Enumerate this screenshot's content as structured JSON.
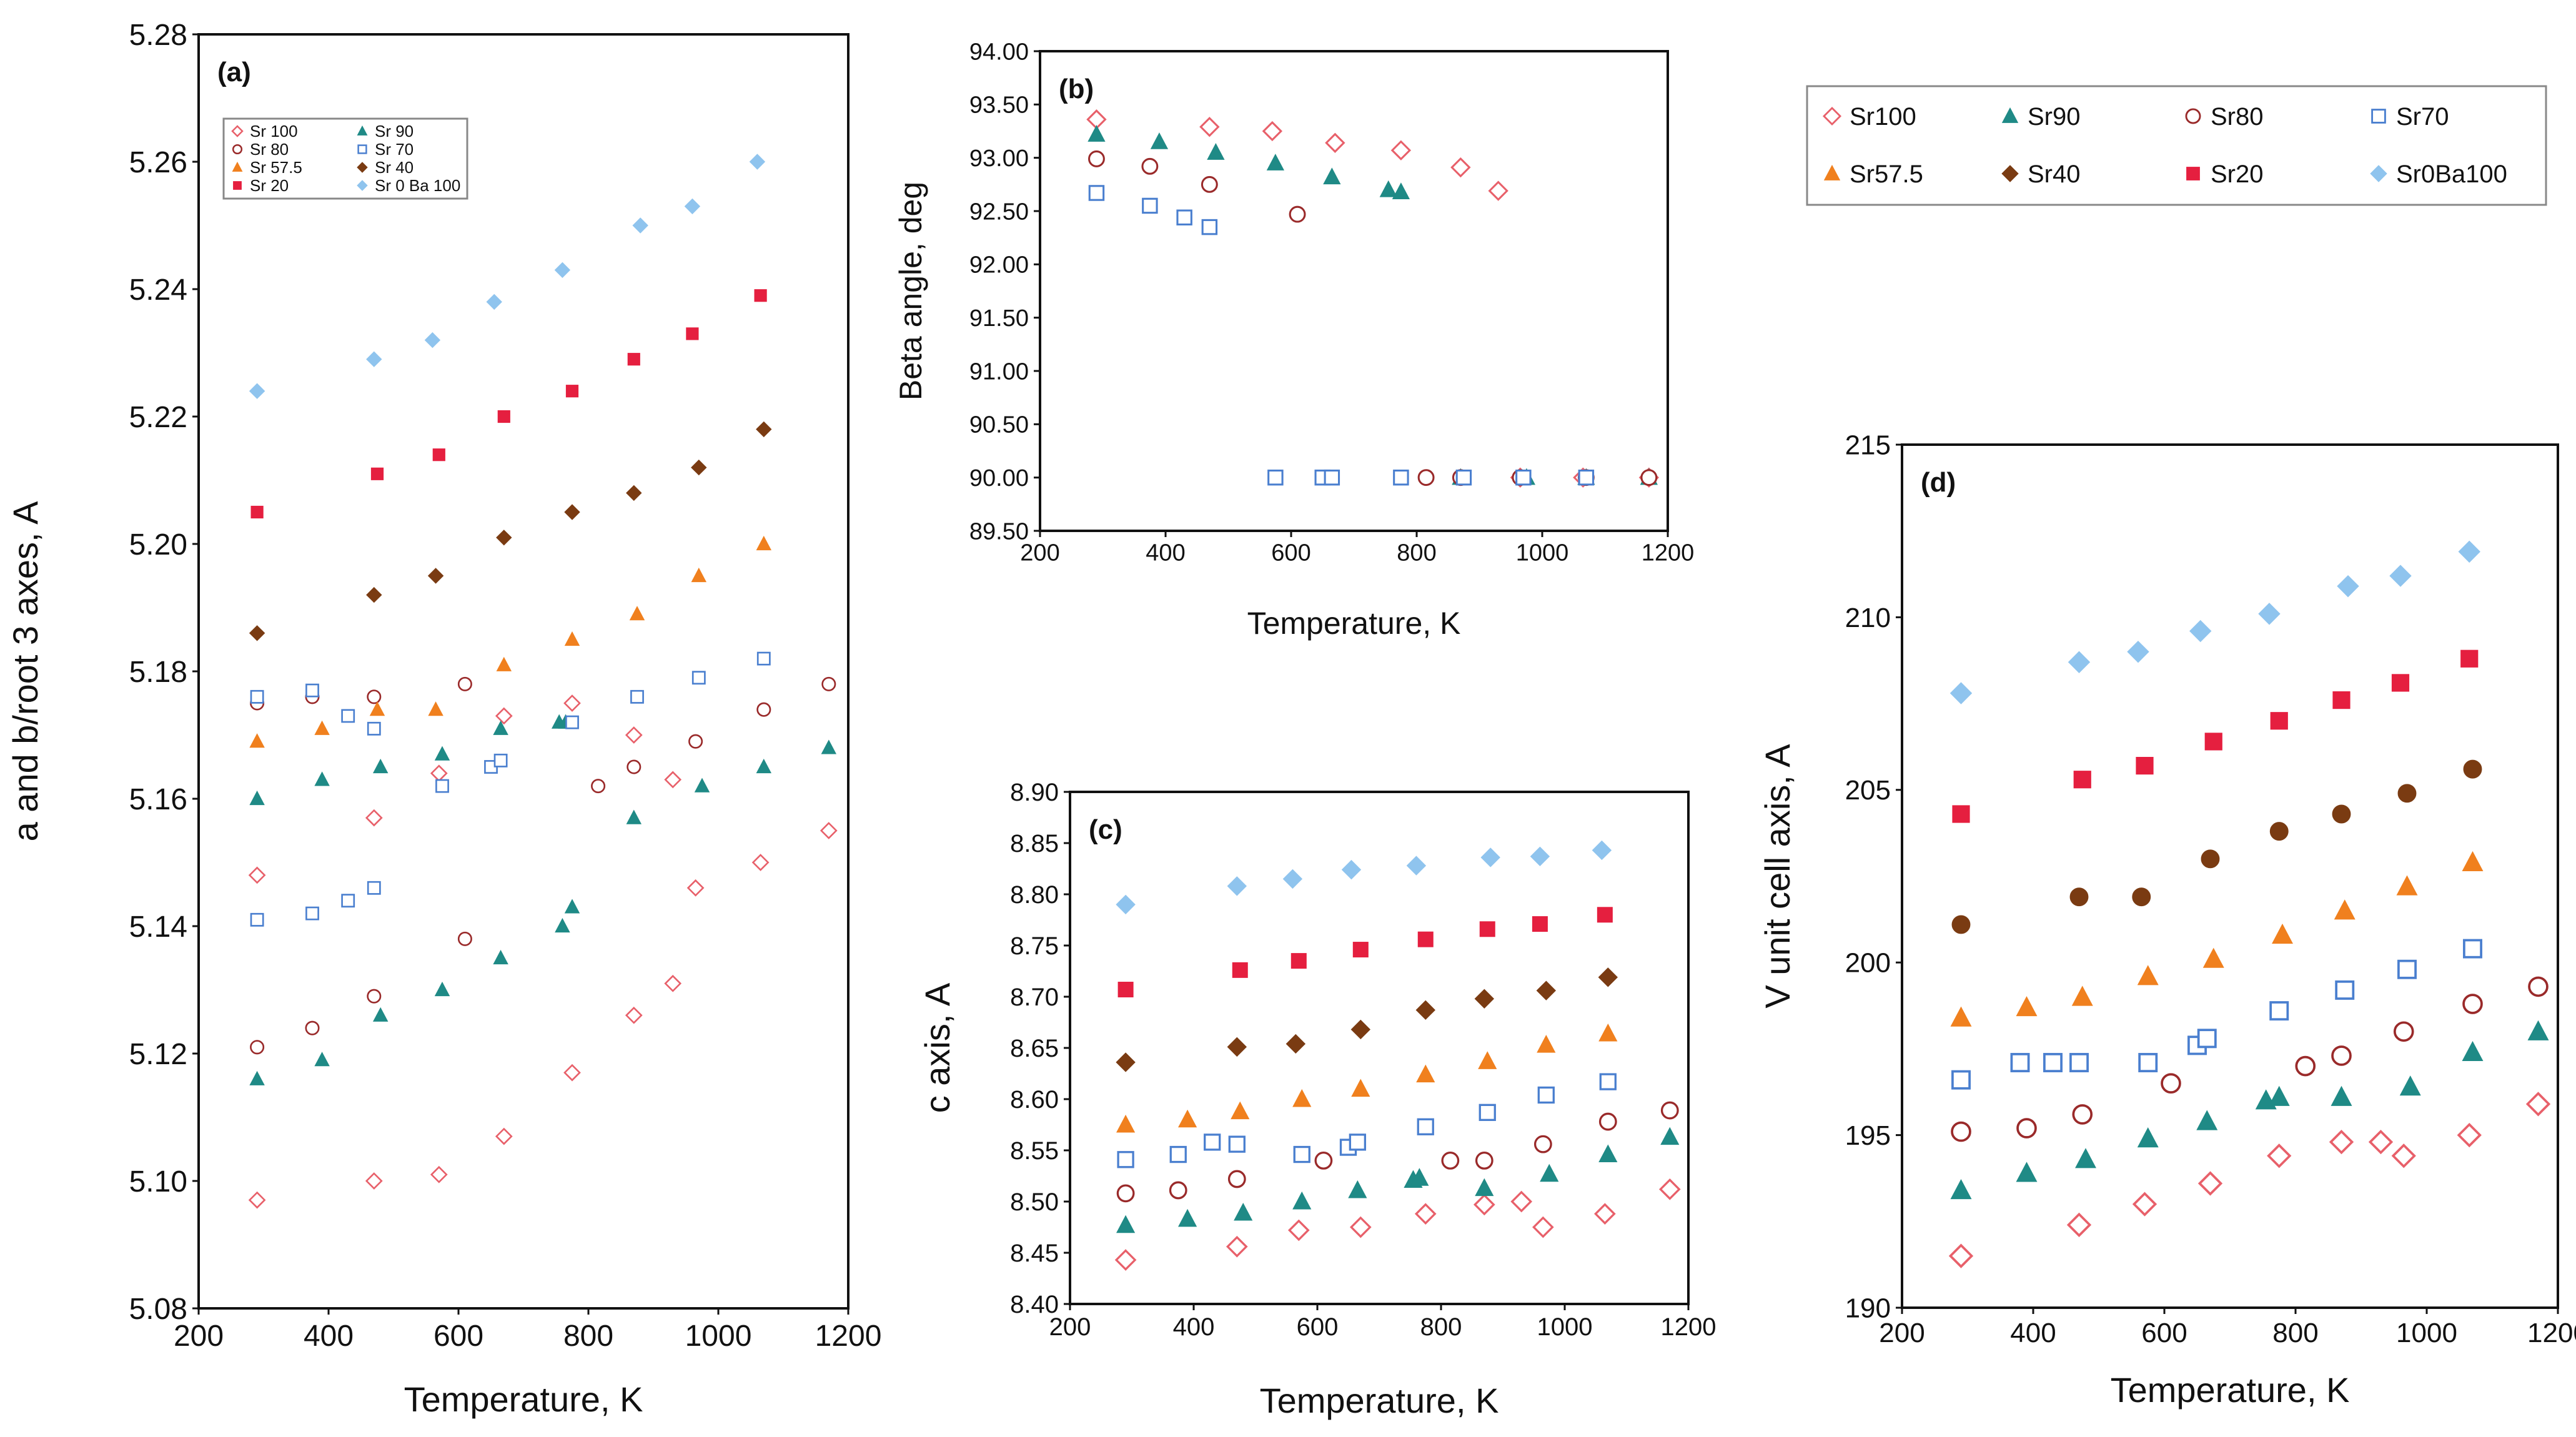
{
  "colors": {
    "Sr100": "#e8606a",
    "Sr90": "#1f8a86",
    "Sr80": "#9a2a2a",
    "Sr70": "#4a7fcf",
    "Sr57.5": "#f0801e",
    "Sr40": "#7a3b12",
    "Sr20": "#e51f3f",
    "Sr0Ba100": "#8fc4ee"
  },
  "chart_data": [
    {
      "id": "a",
      "type": "scatter",
      "panel_label": "(a)",
      "xlabel": "Temperature, K",
      "ylabel": "a and b/root 3  axes,  A",
      "xlim": [
        200,
        1200
      ],
      "ylim": [
        5.08,
        5.28
      ],
      "xticks": [
        "200",
        "400",
        "600",
        "800",
        "1000",
        "1200"
      ],
      "yticks": [
        "5.08",
        "5.10",
        "5.12",
        "5.14",
        "5.16",
        "5.18",
        "5.20",
        "5.22",
        "5.24",
        "5.26",
        "5.28"
      ],
      "legend": [
        {
          "label": "Sr 100",
          "key": "Sr100",
          "marker": "diamond-open"
        },
        {
          "label": "Sr 90",
          "key": "Sr90",
          "marker": "triangle"
        },
        {
          "label": "Sr 80",
          "key": "Sr80",
          "marker": "circle-open"
        },
        {
          "label": "Sr 70",
          "key": "Sr70",
          "marker": "square-open"
        },
        {
          "label": "Sr 57.5",
          "key": "Sr57.5",
          "marker": "triangle"
        },
        {
          "label": "Sr 40",
          "key": "Sr40",
          "marker": "diamond"
        },
        {
          "label": "Sr 20",
          "key": "Sr20",
          "marker": "square"
        },
        {
          "label": "Sr 0 Ba 100",
          "key": "Sr0Ba100",
          "marker": "diamond"
        }
      ],
      "series": [
        {
          "name": "Sr 100 a",
          "key": "Sr100",
          "marker": "diamond-open",
          "x": [
            290,
            470,
            570,
            670,
            775,
            870,
            930,
            965,
            1065,
            1170
          ],
          "y": [
            5.097,
            5.1,
            5.101,
            5.107,
            5.117,
            5.126,
            5.131,
            5.146,
            5.15,
            5.155
          ]
        },
        {
          "name": "Sr 100 b",
          "key": "Sr100",
          "marker": "diamond-open",
          "x": [
            290,
            470,
            570,
            670,
            775,
            870,
            930
          ],
          "y": [
            5.148,
            5.157,
            5.164,
            5.173,
            5.175,
            5.17,
            5.163
          ]
        },
        {
          "name": "Sr 90 a",
          "key": "Sr90",
          "marker": "triangle",
          "x": [
            290,
            390,
            480,
            575,
            665,
            760,
            775,
            870,
            975,
            1070,
            1170
          ],
          "y": [
            5.116,
            5.119,
            5.126,
            5.13,
            5.135,
            5.14,
            5.143,
            5.157,
            5.162,
            5.165,
            5.168
          ]
        },
        {
          "name": "Sr 90 b",
          "key": "Sr90",
          "marker": "triangle",
          "x": [
            290,
            390,
            480,
            575,
            665,
            755,
            765
          ],
          "y": [
            5.16,
            5.163,
            5.165,
            5.167,
            5.171,
            5.172,
            5.172
          ]
        },
        {
          "name": "Sr 80 a",
          "key": "Sr80",
          "marker": "circle-open",
          "x": [
            290,
            375,
            470,
            610,
            815,
            870,
            965,
            1070,
            1170
          ],
          "y": [
            5.121,
            5.124,
            5.129,
            5.138,
            5.162,
            5.165,
            5.169,
            5.174,
            5.178
          ]
        },
        {
          "name": "Sr 80 b",
          "key": "Sr80",
          "marker": "circle-open",
          "x": [
            290,
            375,
            470,
            610
          ],
          "y": [
            5.175,
            5.176,
            5.176,
            5.178
          ]
        },
        {
          "name": "Sr 70 a",
          "key": "Sr70",
          "marker": "square-open",
          "x": [
            290,
            375,
            430,
            470,
            575,
            650,
            665,
            775,
            875,
            970,
            1070
          ],
          "y": [
            5.141,
            5.142,
            5.144,
            5.146,
            5.162,
            5.165,
            5.166,
            5.172,
            5.176,
            5.179,
            5.182
          ]
        },
        {
          "name": "Sr 70 b",
          "key": "Sr70",
          "marker": "square-open",
          "x": [
            290,
            375,
            430,
            470
          ],
          "y": [
            5.176,
            5.177,
            5.173,
            5.171
          ]
        },
        {
          "name": "Sr 57.5",
          "key": "Sr57.5",
          "marker": "triangle",
          "x": [
            290,
            390,
            475,
            565,
            670,
            775,
            875,
            970,
            1070
          ],
          "y": [
            5.169,
            5.171,
            5.174,
            5.174,
            5.181,
            5.185,
            5.189,
            5.195,
            5.2
          ]
        },
        {
          "name": "Sr 40",
          "key": "Sr40",
          "marker": "diamond",
          "x": [
            290,
            470,
            565,
            670,
            775,
            870,
            970,
            1070
          ],
          "y": [
            5.186,
            5.192,
            5.195,
            5.201,
            5.205,
            5.208,
            5.212,
            5.218
          ]
        },
        {
          "name": "Sr 20",
          "key": "Sr20",
          "marker": "square",
          "x": [
            290,
            475,
            570,
            670,
            775,
            870,
            960,
            1065
          ],
          "y": [
            5.205,
            5.211,
            5.214,
            5.22,
            5.224,
            5.229,
            5.233,
            5.239
          ]
        },
        {
          "name": "Sr 0 Ba 100",
          "key": "Sr0Ba100",
          "marker": "diamond",
          "x": [
            290,
            470,
            560,
            655,
            760,
            880,
            960,
            1060
          ],
          "y": [
            5.224,
            5.229,
            5.232,
            5.238,
            5.243,
            5.25,
            5.253,
            5.26
          ]
        }
      ]
    },
    {
      "id": "b",
      "type": "scatter",
      "panel_label": "(b)",
      "xlabel": "Temperature,  K",
      "ylabel": "Beta angle,  deg",
      "xlim": [
        200,
        1200
      ],
      "ylim": [
        89.5,
        94.0
      ],
      "xticks": [
        "200",
        "400",
        "600",
        "800",
        "1000",
        "1200"
      ],
      "yticks": [
        "89.50",
        "90.00",
        "90.50",
        "91.00",
        "91.50",
        "92.00",
        "92.50",
        "93.00",
        "93.50",
        "94.00"
      ],
      "series": [
        {
          "name": "Sr100",
          "key": "Sr100",
          "marker": "diamond-open",
          "x": [
            290,
            470,
            570,
            670,
            775,
            870,
            930,
            965,
            1065,
            1170
          ],
          "y": [
            93.36,
            93.29,
            93.25,
            93.14,
            93.07,
            92.91,
            92.69,
            90.0,
            90.0,
            90.0
          ]
        },
        {
          "name": "Sr90",
          "key": "Sr90",
          "marker": "triangle",
          "x": [
            290,
            390,
            480,
            575,
            665,
            755,
            775,
            870,
            975,
            1070,
            1170
          ],
          "y": [
            93.22,
            93.15,
            93.05,
            92.95,
            92.82,
            92.7,
            92.68,
            90.0,
            90.0,
            90.0,
            90.0
          ]
        },
        {
          "name": "Sr80",
          "key": "Sr80",
          "marker": "circle-open",
          "x": [
            290,
            375,
            470,
            610,
            815,
            870,
            965,
            1070,
            1170
          ],
          "y": [
            92.99,
            92.92,
            92.75,
            92.47,
            90.0,
            90.0,
            90.0,
            90.0,
            90.0
          ]
        },
        {
          "name": "Sr70",
          "key": "Sr70",
          "marker": "square-open",
          "x": [
            290,
            375,
            430,
            470,
            575,
            650,
            665,
            775,
            875,
            970,
            1070
          ],
          "y": [
            92.67,
            92.55,
            92.44,
            92.35,
            90.0,
            90.0,
            90.0,
            90.0,
            90.0,
            90.0,
            90.0
          ]
        }
      ]
    },
    {
      "id": "c",
      "type": "scatter",
      "panel_label": "(c)",
      "xlabel": "Temperature, K",
      "ylabel": "c axis,   A",
      "xlim": [
        200,
        1200
      ],
      "ylim": [
        8.4,
        8.9
      ],
      "xticks": [
        "200",
        "400",
        "600",
        "800",
        "1000",
        "1200"
      ],
      "yticks": [
        "8.40",
        "8.45",
        "8.50",
        "8.55",
        "8.60",
        "8.65",
        "8.70",
        "8.75",
        "8.80",
        "8.85",
        "8.90"
      ],
      "series": [
        {
          "name": "Sr100",
          "key": "Sr100",
          "marker": "diamond-open",
          "x": [
            290,
            470,
            570,
            670,
            775,
            870,
            930,
            965,
            1065,
            1170
          ],
          "y": [
            8.443,
            8.456,
            8.472,
            8.475,
            8.488,
            8.497,
            8.5,
            8.475,
            8.488,
            8.512
          ]
        },
        {
          "name": "Sr90",
          "key": "Sr90",
          "marker": "triangle",
          "x": [
            290,
            390,
            480,
            575,
            665,
            755,
            765,
            870,
            975,
            1070,
            1170
          ],
          "y": [
            8.477,
            8.483,
            8.489,
            8.5,
            8.511,
            8.521,
            8.523,
            8.513,
            8.527,
            8.546,
            8.563
          ]
        },
        {
          "name": "Sr80",
          "key": "Sr80",
          "marker": "circle-open",
          "x": [
            290,
            375,
            470,
            610,
            815,
            870,
            965,
            1070,
            1170
          ],
          "y": [
            8.508,
            8.511,
            8.522,
            8.54,
            8.54,
            8.54,
            8.556,
            8.578,
            8.589
          ]
        },
        {
          "name": "Sr70",
          "key": "Sr70",
          "marker": "square-open",
          "x": [
            290,
            375,
            430,
            470,
            575,
            650,
            665,
            775,
            875,
            970,
            1070
          ],
          "y": [
            8.541,
            8.546,
            8.558,
            8.556,
            8.546,
            8.553,
            8.558,
            8.573,
            8.587,
            8.604,
            8.617
          ]
        },
        {
          "name": "Sr57.5",
          "key": "Sr57.5",
          "marker": "triangle",
          "x": [
            290,
            390,
            475,
            575,
            670,
            775,
            875,
            970,
            1070
          ],
          "y": [
            8.575,
            8.58,
            8.588,
            8.6,
            8.61,
            8.624,
            8.637,
            8.653,
            8.664
          ]
        },
        {
          "name": "Sr40",
          "key": "Sr40",
          "marker": "diamond",
          "x": [
            290,
            470,
            565,
            670,
            775,
            870,
            970,
            1070
          ],
          "y": [
            8.636,
            8.651,
            8.654,
            8.668,
            8.687,
            8.698,
            8.706,
            8.719
          ]
        },
        {
          "name": "Sr20",
          "key": "Sr20",
          "marker": "square",
          "x": [
            290,
            475,
            570,
            670,
            775,
            875,
            960,
            1065
          ],
          "y": [
            8.707,
            8.726,
            8.735,
            8.746,
            8.756,
            8.766,
            8.771,
            8.78
          ]
        },
        {
          "name": "Sr0Ba100",
          "key": "Sr0Ba100",
          "marker": "diamond",
          "x": [
            290,
            470,
            560,
            655,
            760,
            880,
            960,
            1060
          ],
          "y": [
            8.79,
            8.808,
            8.815,
            8.824,
            8.828,
            8.836,
            8.837,
            8.843
          ]
        }
      ]
    },
    {
      "id": "d",
      "type": "scatter",
      "panel_label": "(d)",
      "xlabel": "Temperature, K",
      "ylabel": "V unit cell axis, A",
      "xlim": [
        200,
        1200
      ],
      "ylim": [
        190,
        215
      ],
      "xticks": [
        "200",
        "400",
        "600",
        "800",
        "1000",
        "1200"
      ],
      "yticks": [
        "190",
        "195",
        "200",
        "205",
        "210",
        "215"
      ],
      "series": [
        {
          "name": "Sr100",
          "key": "Sr100",
          "marker": "diamond-open",
          "x": [
            290,
            470,
            570,
            670,
            775,
            870,
            930,
            965,
            1065,
            1170
          ],
          "y": [
            191.5,
            192.4,
            193.0,
            193.6,
            194.4,
            194.8,
            194.8,
            194.4,
            195.0,
            195.9
          ]
        },
        {
          "name": "Sr90",
          "key": "Sr90",
          "marker": "triangle",
          "x": [
            290,
            390,
            480,
            575,
            665,
            755,
            775,
            870,
            975,
            1070,
            1170
          ],
          "y": [
            193.4,
            193.9,
            194.3,
            194.9,
            195.4,
            196.0,
            196.1,
            196.1,
            196.4,
            197.4,
            198.0
          ]
        },
        {
          "name": "Sr80",
          "key": "Sr80",
          "marker": "circle-open",
          "x": [
            290,
            390,
            475,
            610,
            815,
            870,
            965,
            1070,
            1170
          ],
          "y": [
            195.1,
            195.2,
            195.6,
            196.5,
            197.0,
            197.3,
            198.0,
            198.8,
            199.3
          ]
        },
        {
          "name": "Sr70",
          "key": "Sr70",
          "marker": "square-open",
          "x": [
            290,
            380,
            430,
            470,
            575,
            650,
            665,
            775,
            875,
            970,
            1070
          ],
          "y": [
            196.6,
            197.1,
            197.1,
            197.1,
            197.1,
            197.6,
            197.8,
            198.6,
            199.2,
            199.8,
            200.4
          ]
        },
        {
          "name": "Sr57.5",
          "key": "Sr57.5",
          "marker": "triangle",
          "x": [
            290,
            390,
            475,
            575,
            675,
            780,
            875,
            970,
            1070
          ],
          "y": [
            198.4,
            198.7,
            199.0,
            199.6,
            200.1,
            200.8,
            201.5,
            202.2,
            202.9
          ]
        },
        {
          "name": "Sr40",
          "key": "Sr40",
          "marker": "circle",
          "x": [
            290,
            470,
            565,
            670,
            775,
            870,
            970,
            1070
          ],
          "y": [
            201.1,
            201.9,
            201.9,
            203.0,
            203.8,
            204.3,
            204.9,
            205.6
          ]
        },
        {
          "name": "Sr20",
          "key": "Sr20",
          "marker": "square",
          "x": [
            290,
            475,
            570,
            675,
            775,
            870,
            960,
            1065
          ],
          "y": [
            204.3,
            205.3,
            205.7,
            206.4,
            207.0,
            207.6,
            208.1,
            208.8
          ]
        },
        {
          "name": "Sr0Ba100",
          "key": "Sr0Ba100",
          "marker": "diamond",
          "x": [
            290,
            470,
            560,
            655,
            760,
            880,
            960,
            1065
          ],
          "y": [
            207.8,
            208.7,
            209.0,
            209.6,
            210.1,
            210.9,
            211.2,
            211.9
          ]
        }
      ]
    }
  ],
  "shared_legend": [
    {
      "label": "Sr100",
      "key": "Sr100",
      "marker": "diamond-open"
    },
    {
      "label": "Sr90",
      "key": "Sr90",
      "marker": "triangle"
    },
    {
      "label": "Sr80",
      "key": "Sr80",
      "marker": "circle-open"
    },
    {
      "label": "Sr70",
      "key": "Sr70",
      "marker": "square-open"
    },
    {
      "label": "Sr57.5",
      "key": "Sr57.5",
      "marker": "triangle"
    },
    {
      "label": "Sr40",
      "key": "Sr40",
      "marker": "diamond"
    },
    {
      "label": "Sr20",
      "key": "Sr20",
      "marker": "square"
    },
    {
      "label": "Sr0Ba100",
      "key": "Sr0Ba100",
      "marker": "diamond"
    }
  ]
}
